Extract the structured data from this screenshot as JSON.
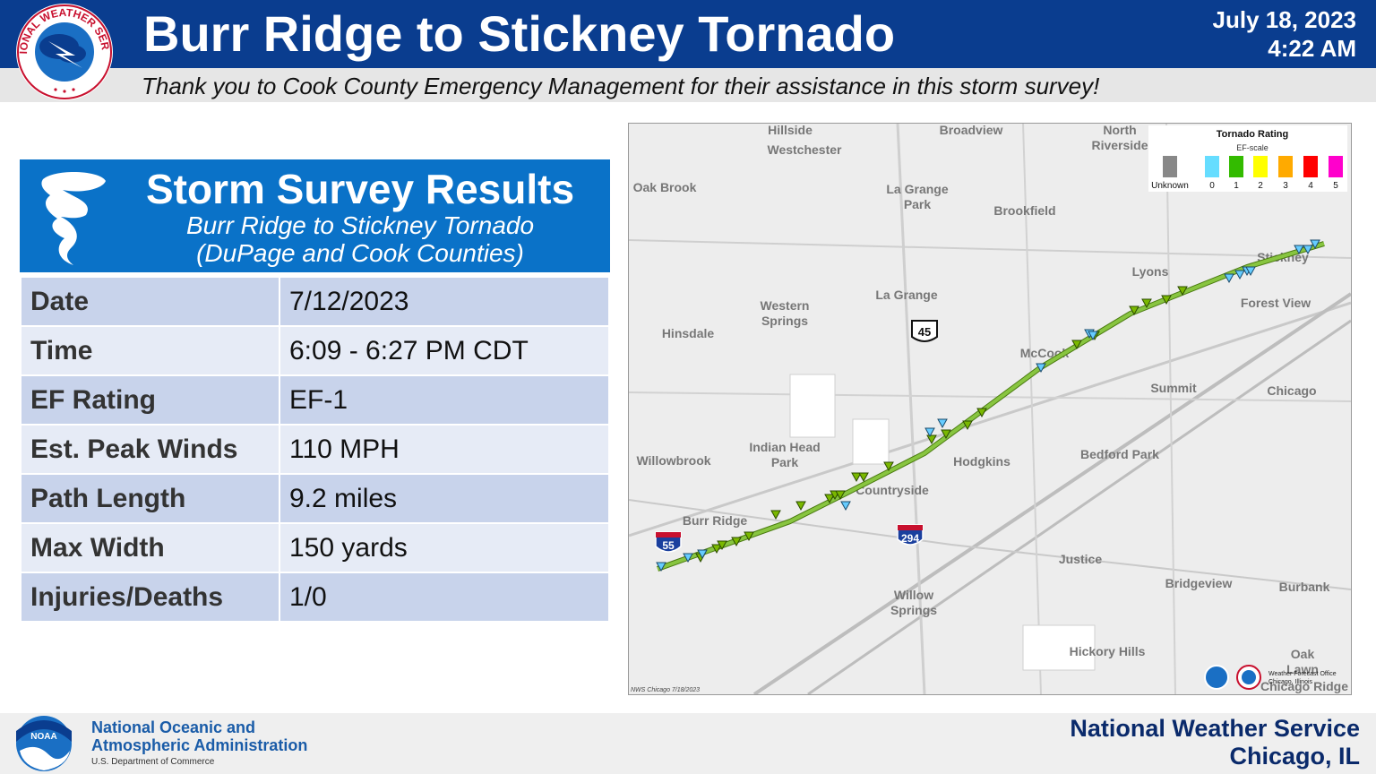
{
  "header": {
    "title": "Burr Ridge to Stickney Tornado",
    "date": "July 18, 2023",
    "time": "4:22 AM",
    "thanks": "Thank you to Cook County Emergency Management for their assistance in this storm survey!",
    "logo_text": "NATIONAL WEATHER SERVICE"
  },
  "survey": {
    "title": "Storm Survey Results",
    "subtitle_line1": "Burr Ridge to Stickney Tornado",
    "subtitle_line2": "(DuPage and Cook Counties)",
    "rows": [
      {
        "label": "Date",
        "value": "7/12/2023"
      },
      {
        "label": "Time",
        "value": "6:09 - 6:27 PM CDT"
      },
      {
        "label": "EF Rating",
        "value": "EF-1"
      },
      {
        "label": "Est. Peak Winds",
        "value": "110 MPH"
      },
      {
        "label": "Path Length",
        "value": "9.2 miles"
      },
      {
        "label": "Max Width",
        "value": "150 yards"
      },
      {
        "label": "Injuries/Deaths",
        "value": "1/0"
      }
    ]
  },
  "map": {
    "places": [
      {
        "name": "Hillside",
        "big": true
      },
      {
        "name": "Westchester",
        "big": true
      },
      {
        "name": "Broadview",
        "big": true
      },
      {
        "name": "North Riverside",
        "big": true
      },
      {
        "name": "Oak Brook",
        "big": true
      },
      {
        "name": "La Grange Park",
        "big": true
      },
      {
        "name": "Brookfield",
        "big": true
      },
      {
        "name": "Lyons",
        "big": true
      },
      {
        "name": "Stickney",
        "big": true
      },
      {
        "name": "La Grange",
        "big": true
      },
      {
        "name": "Western Springs",
        "big": true
      },
      {
        "name": "Hinsdale",
        "big": true
      },
      {
        "name": "Forest View",
        "big": true
      },
      {
        "name": "McCook",
        "big": true
      },
      {
        "name": "Summit",
        "big": true
      },
      {
        "name": "Chicago",
        "big": true
      },
      {
        "name": "Indian Head Park",
        "big": true
      },
      {
        "name": "Willowbrook",
        "big": true
      },
      {
        "name": "Hodgkins",
        "big": true
      },
      {
        "name": "Bedford Park",
        "big": true
      },
      {
        "name": "Countryside",
        "big": true
      },
      {
        "name": "Burr Ridge",
        "big": true
      },
      {
        "name": "Justice",
        "big": true
      },
      {
        "name": "Bridgeview",
        "big": true
      },
      {
        "name": "Burbank",
        "big": true
      },
      {
        "name": "Willow Springs",
        "big": true
      },
      {
        "name": "Hickory Hills",
        "big": true
      },
      {
        "name": "Oak Lawn",
        "big": true
      },
      {
        "name": "Chicago Ridge",
        "big": true
      }
    ],
    "shields": [
      {
        "kind": "us",
        "number": "45"
      },
      {
        "kind": "interstate",
        "number": "55"
      },
      {
        "kind": "interstate",
        "number": "294"
      }
    ],
    "legend": {
      "title": "Tornado Rating",
      "subtitle": "EF-scale",
      "items": [
        {
          "label": "Unknown",
          "color": "#888888"
        },
        {
          "label": "0",
          "color": "#66ddff"
        },
        {
          "label": "1",
          "color": "#33bb00"
        },
        {
          "label": "2",
          "color": "#ffff00"
        },
        {
          "label": "3",
          "color": "#ffaa00"
        },
        {
          "label": "4",
          "color": "#ff0000"
        },
        {
          "label": "5",
          "color": "#ff00cc"
        }
      ]
    },
    "credit": "NWS Chicago 7/18/2023",
    "wfo_line1": "Weather Forecast Office",
    "wfo_line2": "Chicago, Illinois",
    "track_color": "#88c540",
    "ef1_color": "#7ab800",
    "ef0_color": "#66ccff"
  },
  "footer": {
    "noaa_line1": "National Oceanic and",
    "noaa_line2": "Atmospheric Administration",
    "noaa_line3": "U.S. Department of Commerce",
    "noaa_logo_text": "NOAA",
    "nws_line1": "National Weather Service",
    "nws_line2": "Chicago, IL"
  }
}
